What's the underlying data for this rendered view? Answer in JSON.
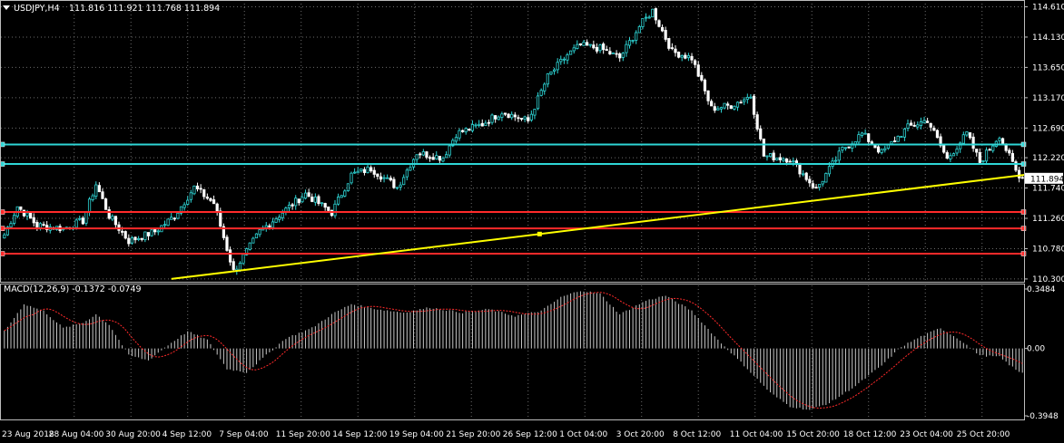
{
  "chart_data": [
    {
      "type": "candlestick",
      "symbol_label": "USDJPY,H4",
      "ohlc_header": "111.816 111.921 111.768 111.894",
      "current_price": 111.894,
      "current_price_label": "111.894",
      "y_ticks": [
        "114.610",
        "114.130",
        "113.650",
        "113.170",
        "112.690",
        "112.220",
        "111.740",
        "111.260",
        "110.780",
        "110.300"
      ],
      "ylim": [
        110.27,
        114.66
      ],
      "x_ticks": [
        "23 Aug 2018",
        "28 Aug 04:00",
        "30 Aug 20:00",
        "4 Sep 12:00",
        "7 Sep 04:00",
        "11 Sep 20:00",
        "14 Sep 12:00",
        "19 Sep 04:00",
        "21 Sep 20:00",
        "26 Sep 12:00",
        "1 Oct 04:00",
        "3 Oct 20:00",
        "8 Oct 12:00",
        "11 Oct 04:00",
        "15 Oct 20:00",
        "18 Oct 12:00",
        "23 Oct 04:00",
        "25 Oct 20:00"
      ],
      "close_path": [
        {
          "t": 0,
          "p": 111.0
        },
        {
          "t": 4,
          "p": 111.45
        },
        {
          "t": 10,
          "p": 111.15
        },
        {
          "t": 18,
          "p": 111.1
        },
        {
          "t": 24,
          "p": 111.22
        },
        {
          "t": 28,
          "p": 111.8
        },
        {
          "t": 32,
          "p": 111.3
        },
        {
          "t": 38,
          "p": 110.9
        },
        {
          "t": 46,
          "p": 111.05
        },
        {
          "t": 52,
          "p": 111.3
        },
        {
          "t": 58,
          "p": 111.75
        },
        {
          "t": 64,
          "p": 111.5
        },
        {
          "t": 70,
          "p": 110.42
        },
        {
          "t": 78,
          "p": 111.05
        },
        {
          "t": 86,
          "p": 111.4
        },
        {
          "t": 92,
          "p": 111.65
        },
        {
          "t": 100,
          "p": 111.35
        },
        {
          "t": 106,
          "p": 111.95
        },
        {
          "t": 112,
          "p": 112.05
        },
        {
          "t": 120,
          "p": 111.75
        },
        {
          "t": 126,
          "p": 112.3
        },
        {
          "t": 134,
          "p": 112.22
        },
        {
          "t": 138,
          "p": 112.6
        },
        {
          "t": 146,
          "p": 112.75
        },
        {
          "t": 152,
          "p": 112.95
        },
        {
          "t": 160,
          "p": 112.8
        },
        {
          "t": 166,
          "p": 113.5
        },
        {
          "t": 172,
          "p": 113.85
        },
        {
          "t": 176,
          "p": 114.0
        },
        {
          "t": 182,
          "p": 113.95
        },
        {
          "t": 188,
          "p": 113.8
        },
        {
          "t": 194,
          "p": 114.3
        },
        {
          "t": 198,
          "p": 114.55
        },
        {
          "t": 204,
          "p": 113.9
        },
        {
          "t": 210,
          "p": 113.8
        },
        {
          "t": 216,
          "p": 113.0
        },
        {
          "t": 222,
          "p": 113.05
        },
        {
          "t": 228,
          "p": 113.2
        },
        {
          "t": 232,
          "p": 112.25
        },
        {
          "t": 240,
          "p": 112.2
        },
        {
          "t": 248,
          "p": 111.72
        },
        {
          "t": 256,
          "p": 112.35
        },
        {
          "t": 262,
          "p": 112.6
        },
        {
          "t": 268,
          "p": 112.3
        },
        {
          "t": 276,
          "p": 112.7
        },
        {
          "t": 282,
          "p": 112.82
        },
        {
          "t": 288,
          "p": 112.2
        },
        {
          "t": 294,
          "p": 112.6
        },
        {
          "t": 298,
          "p": 112.15
        },
        {
          "t": 304,
          "p": 112.58
        },
        {
          "t": 310,
          "p": 111.894
        }
      ],
      "support_resistance_lines": [
        {
          "price": 112.43,
          "color": "#2ed6d6"
        },
        {
          "price": 112.12,
          "color": "#2ed6d6"
        },
        {
          "price": 111.36,
          "color": "#ff2a2a"
        },
        {
          "price": 111.1,
          "color": "#ff2a2a"
        },
        {
          "price": 110.7,
          "color": "#ff2a2a"
        }
      ],
      "trendline": {
        "from_t": 51,
        "from_p": 110.3,
        "to_t": 312,
        "to_p": 111.95,
        "color": "#ffff00"
      },
      "colors": {
        "bull": "#2ed6d6",
        "bear": "#ffffff",
        "grid": "#6b6b6b",
        "background": "#000000"
      }
    },
    {
      "type": "bar",
      "indicator_label": "MACD(12,26,9) -0.1372 -0.0749",
      "y_ticks": [
        "0.3484",
        "0.00",
        "-0.3948"
      ],
      "ylim": [
        -0.3948,
        0.3484
      ],
      "histogram_path": [
        {
          "t": 0,
          "v": 0.1
        },
        {
          "t": 6,
          "v": 0.26
        },
        {
          "t": 12,
          "v": 0.22
        },
        {
          "t": 18,
          "v": 0.12
        },
        {
          "t": 24,
          "v": 0.15
        },
        {
          "t": 28,
          "v": 0.2
        },
        {
          "t": 32,
          "v": 0.14
        },
        {
          "t": 38,
          "v": -0.04
        },
        {
          "t": 44,
          "v": -0.07
        },
        {
          "t": 50,
          "v": 0.02
        },
        {
          "t": 56,
          "v": 0.1
        },
        {
          "t": 62,
          "v": 0.05
        },
        {
          "t": 68,
          "v": -0.12
        },
        {
          "t": 74,
          "v": -0.14
        },
        {
          "t": 80,
          "v": -0.04
        },
        {
          "t": 86,
          "v": 0.06
        },
        {
          "t": 94,
          "v": 0.12
        },
        {
          "t": 100,
          "v": 0.2
        },
        {
          "t": 106,
          "v": 0.26
        },
        {
          "t": 114,
          "v": 0.23
        },
        {
          "t": 122,
          "v": 0.21
        },
        {
          "t": 130,
          "v": 0.24
        },
        {
          "t": 140,
          "v": 0.21
        },
        {
          "t": 148,
          "v": 0.23
        },
        {
          "t": 156,
          "v": 0.19
        },
        {
          "t": 164,
          "v": 0.22
        },
        {
          "t": 170,
          "v": 0.3
        },
        {
          "t": 176,
          "v": 0.34
        },
        {
          "t": 182,
          "v": 0.32
        },
        {
          "t": 188,
          "v": 0.2
        },
        {
          "t": 196,
          "v": 0.28
        },
        {
          "t": 202,
          "v": 0.31
        },
        {
          "t": 210,
          "v": 0.22
        },
        {
          "t": 218,
          "v": 0.05
        },
        {
          "t": 226,
          "v": -0.1
        },
        {
          "t": 234,
          "v": -0.26
        },
        {
          "t": 240,
          "v": -0.34
        },
        {
          "t": 246,
          "v": -0.36
        },
        {
          "t": 252,
          "v": -0.32
        },
        {
          "t": 260,
          "v": -0.22
        },
        {
          "t": 268,
          "v": -0.1
        },
        {
          "t": 274,
          "v": 0.01
        },
        {
          "t": 280,
          "v": 0.07
        },
        {
          "t": 286,
          "v": 0.12
        },
        {
          "t": 292,
          "v": 0.05
        },
        {
          "t": 298,
          "v": -0.04
        },
        {
          "t": 304,
          "v": -0.05
        },
        {
          "t": 310,
          "v": -0.14
        }
      ],
      "signal_color": "#ff2a2a",
      "histogram_color": "#c8c8c8"
    }
  ]
}
